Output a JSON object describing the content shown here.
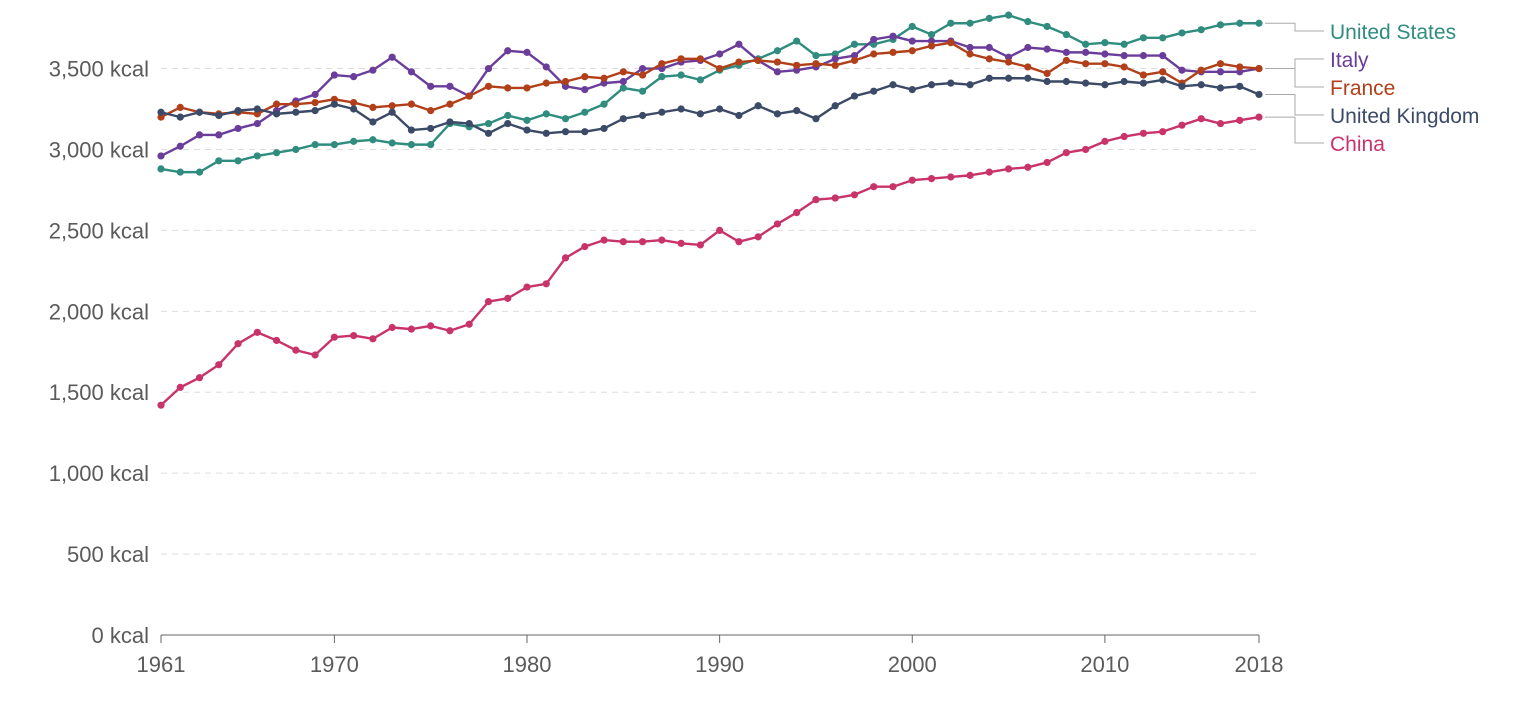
{
  "chart_data": {
    "type": "line",
    "title": "",
    "xlabel": "",
    "ylabel": "",
    "xlim": [
      1961,
      2018
    ],
    "ylim": [
      0,
      3800
    ],
    "y_ticks": [
      0,
      500,
      1000,
      1500,
      2000,
      2500,
      3000,
      3500
    ],
    "y_tick_labels": [
      "0 kcal",
      "500 kcal",
      "1,000 kcal",
      "1,500 kcal",
      "2,000 kcal",
      "2,500 kcal",
      "3,000 kcal",
      "3,500 kcal"
    ],
    "x_ticks": [
      1961,
      1970,
      1980,
      1990,
      2000,
      2010,
      2018
    ],
    "x_tick_labels": [
      "1961",
      "1970",
      "1980",
      "1990",
      "2000",
      "2010",
      "2018"
    ],
    "grid": "horizontal dashed",
    "legend": "right, end-of-line labels",
    "x": [
      1961,
      1962,
      1963,
      1964,
      1965,
      1966,
      1967,
      1968,
      1969,
      1970,
      1971,
      1972,
      1973,
      1974,
      1975,
      1976,
      1977,
      1978,
      1979,
      1980,
      1981,
      1982,
      1983,
      1984,
      1985,
      1986,
      1987,
      1988,
      1989,
      1990,
      1991,
      1992,
      1993,
      1994,
      1995,
      1996,
      1997,
      1998,
      1999,
      2000,
      2001,
      2002,
      2003,
      2004,
      2005,
      2006,
      2007,
      2008,
      2009,
      2010,
      2011,
      2012,
      2013,
      2014,
      2015,
      2016,
      2017,
      2018
    ],
    "series": [
      {
        "name": "United States",
        "color": "#2f8c7e",
        "values": [
          2880,
          2860,
          2860,
          2930,
          2930,
          2960,
          2980,
          3000,
          3030,
          3030,
          3050,
          3060,
          3040,
          3030,
          3030,
          3160,
          3140,
          3160,
          3210,
          3180,
          3220,
          3190,
          3230,
          3280,
          3380,
          3360,
          3450,
          3460,
          3430,
          3490,
          3520,
          3560,
          3610,
          3670,
          3580,
          3590,
          3650,
          3650,
          3680,
          3760,
          3710,
          3780,
          3780,
          3810,
          3830,
          3790,
          3760,
          3710,
          3650,
          3660,
          3650,
          3690,
          3690,
          3720,
          3740,
          3770,
          3780,
          3780
        ]
      },
      {
        "name": "Italy",
        "color": "#6b3d9a",
        "values": [
          2960,
          3020,
          3090,
          3090,
          3130,
          3160,
          3240,
          3300,
          3340,
          3460,
          3450,
          3490,
          3570,
          3480,
          3390,
          3390,
          3330,
          3500,
          3610,
          3600,
          3510,
          3390,
          3370,
          3410,
          3420,
          3500,
          3500,
          3540,
          3550,
          3590,
          3650,
          3550,
          3480,
          3490,
          3510,
          3560,
          3580,
          3680,
          3700,
          3670,
          3670,
          3670,
          3630,
          3630,
          3570,
          3630,
          3620,
          3600,
          3600,
          3590,
          3580,
          3580,
          3580,
          3490,
          3480,
          3480,
          3480,
          3500
        ]
      },
      {
        "name": "France",
        "color": "#b1401a",
        "values": [
          3200,
          3260,
          3230,
          3220,
          3230,
          3220,
          3280,
          3280,
          3290,
          3310,
          3290,
          3260,
          3270,
          3280,
          3240,
          3280,
          3330,
          3390,
          3380,
          3380,
          3410,
          3420,
          3450,
          3440,
          3480,
          3460,
          3530,
          3560,
          3560,
          3500,
          3540,
          3550,
          3540,
          3520,
          3530,
          3520,
          3550,
          3590,
          3600,
          3610,
          3640,
          3660,
          3590,
          3560,
          3540,
          3510,
          3470,
          3550,
          3530,
          3530,
          3510,
          3460,
          3480,
          3410,
          3490,
          3530,
          3510,
          3500
        ]
      },
      {
        "name": "United Kingdom",
        "color": "#3b4a66",
        "values": [
          3230,
          3200,
          3230,
          3210,
          3240,
          3250,
          3220,
          3230,
          3240,
          3280,
          3250,
          3170,
          3230,
          3120,
          3130,
          3170,
          3160,
          3100,
          3160,
          3120,
          3100,
          3110,
          3110,
          3130,
          3190,
          3210,
          3230,
          3250,
          3220,
          3250,
          3210,
          3270,
          3220,
          3240,
          3190,
          3270,
          3330,
          3360,
          3400,
          3370,
          3400,
          3410,
          3400,
          3440,
          3440,
          3440,
          3420,
          3420,
          3410,
          3400,
          3420,
          3410,
          3430,
          3390,
          3400,
          3380,
          3390,
          3340
        ]
      },
      {
        "name": "China",
        "color": "#c8336a",
        "values": [
          1420,
          1530,
          1590,
          1670,
          1800,
          1870,
          1820,
          1760,
          1730,
          1840,
          1850,
          1830,
          1900,
          1890,
          1910,
          1880,
          1920,
          2060,
          2080,
          2150,
          2170,
          2330,
          2400,
          2440,
          2430,
          2430,
          2440,
          2420,
          2410,
          2500,
          2430,
          2460,
          2540,
          2610,
          2690,
          2700,
          2720,
          2770,
          2770,
          2810,
          2820,
          2830,
          2840,
          2860,
          2880,
          2890,
          2920,
          2980,
          3000,
          3050,
          3080,
          3100,
          3110,
          3150,
          3190,
          3160,
          3180,
          3200
        ]
      }
    ]
  }
}
